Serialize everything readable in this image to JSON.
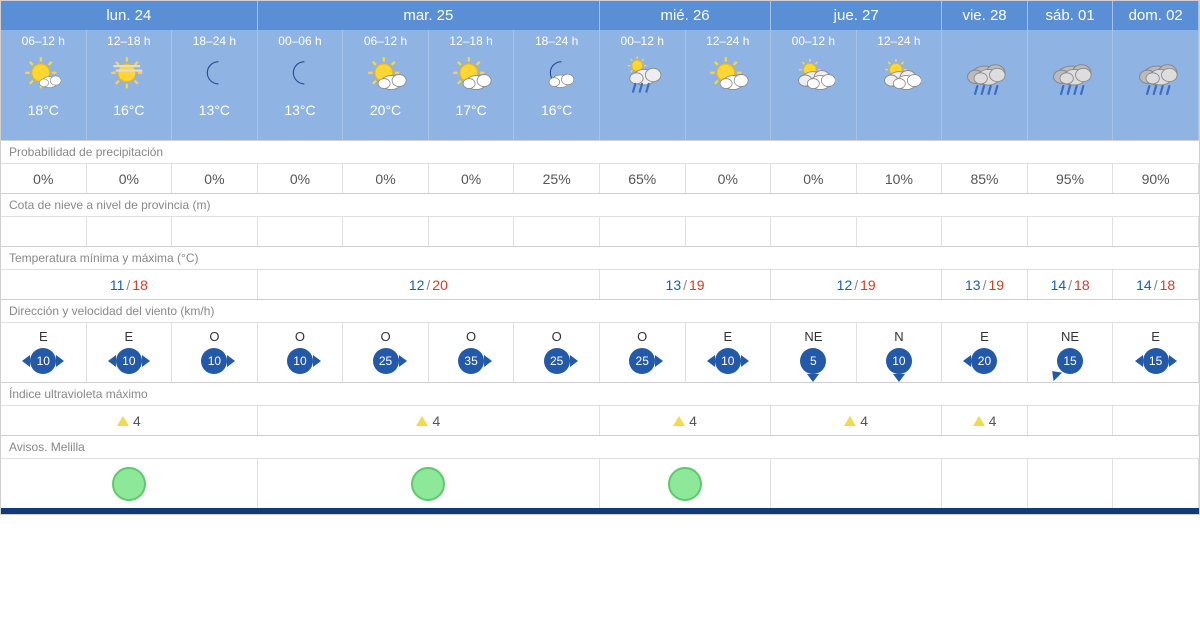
{
  "colors": {
    "header_bg": "#5a8fd6",
    "period_bg": "#8fb3e2",
    "header_border": "#a8c2e6",
    "grid_border": "#e0e0e0",
    "wind_pill": "#2259a8",
    "min_temp": "#1860b5",
    "max_temp": "#d63a2a",
    "uv_triangle": "#f2d94e",
    "aviso_fill": "#8de89a",
    "aviso_border": "#5cc96b",
    "footer_bar": "#123a78"
  },
  "section_labels": {
    "precip": "Probabilidad de precipitación",
    "snow": "Cota de nieve a nivel de provincia (m)",
    "temp": "Temperatura mínima y máxima (°C)",
    "wind": "Dirección y velocidad del viento (km/h)",
    "uv": "Índice ultravioleta máximo",
    "avisos": "Avisos. Melilla"
  },
  "days": [
    {
      "label": "lun. 24",
      "periods": [
        {
          "hours": "06–12 h",
          "icon": "sun-small-cloud",
          "temp": "18°C"
        },
        {
          "hours": "12–18 h",
          "icon": "sun-haze",
          "temp": "16°C"
        },
        {
          "hours": "18–24 h",
          "icon": "moon",
          "temp": "13°C"
        }
      ],
      "precip": [
        "0%",
        "0%",
        "0%"
      ],
      "snow": [
        "",
        "",
        ""
      ],
      "minmax": {
        "min": "11",
        "max": "18"
      },
      "wind": [
        {
          "dir": "E",
          "speed": "10",
          "arrows": [
            "left",
            "right"
          ]
        },
        {
          "dir": "E",
          "speed": "10",
          "arrows": [
            "left",
            "right"
          ]
        },
        {
          "dir": "O",
          "speed": "10",
          "arrows": [
            "right"
          ]
        }
      ],
      "uv": "4",
      "aviso": true
    },
    {
      "label": "mar. 25",
      "periods": [
        {
          "hours": "00–06 h",
          "icon": "moon",
          "temp": "13°C"
        },
        {
          "hours": "06–12 h",
          "icon": "sun-cloud",
          "temp": "20°C"
        },
        {
          "hours": "12–18 h",
          "icon": "sun-cloud",
          "temp": "17°C"
        },
        {
          "hours": "18–24 h",
          "icon": "moon-cloud",
          "temp": "16°C"
        }
      ],
      "precip": [
        "0%",
        "0%",
        "0%",
        "25%"
      ],
      "snow": [
        "",
        "",
        "",
        ""
      ],
      "minmax": {
        "min": "12",
        "max": "20"
      },
      "wind": [
        {
          "dir": "O",
          "speed": "10",
          "arrows": [
            "right"
          ]
        },
        {
          "dir": "O",
          "speed": "25",
          "arrows": [
            "right"
          ]
        },
        {
          "dir": "O",
          "speed": "35",
          "arrows": [
            "right"
          ]
        },
        {
          "dir": "O",
          "speed": "25",
          "arrows": [
            "right"
          ]
        }
      ],
      "uv": "4",
      "aviso": true
    },
    {
      "label": "mié. 26",
      "periods": [
        {
          "hours": "00–12 h",
          "icon": "cloud-rain-sun",
          "temp": ""
        },
        {
          "hours": "12–24 h",
          "icon": "sun-cloud",
          "temp": ""
        }
      ],
      "precip": [
        "65%",
        "0%"
      ],
      "snow": [
        "",
        ""
      ],
      "minmax": {
        "min": "13",
        "max": "19"
      },
      "wind": [
        {
          "dir": "O",
          "speed": "25",
          "arrows": [
            "right"
          ]
        },
        {
          "dir": "E",
          "speed": "10",
          "arrows": [
            "left",
            "right"
          ]
        }
      ],
      "uv": "4",
      "aviso": true
    },
    {
      "label": "jue. 27",
      "periods": [
        {
          "hours": "00–12 h",
          "icon": "sun-clouds",
          "temp": ""
        },
        {
          "hours": "12–24 h",
          "icon": "sun-clouds",
          "temp": ""
        }
      ],
      "precip": [
        "0%",
        "10%"
      ],
      "snow": [
        "",
        ""
      ],
      "minmax": {
        "min": "12",
        "max": "19"
      },
      "wind": [
        {
          "dir": "NE",
          "speed": "5",
          "arrows": [
            "down"
          ]
        },
        {
          "dir": "N",
          "speed": "10",
          "arrows": [
            "down"
          ]
        }
      ],
      "uv": "4",
      "aviso": false
    },
    {
      "label": "vie. 28",
      "periods": [
        {
          "hours": "",
          "icon": "rain-cloud",
          "temp": ""
        }
      ],
      "precip": [
        "85%"
      ],
      "snow": [
        ""
      ],
      "minmax": {
        "min": "13",
        "max": "19"
      },
      "wind": [
        {
          "dir": "E",
          "speed": "20",
          "arrows": [
            "left"
          ]
        }
      ],
      "uv": "4",
      "aviso": false
    },
    {
      "label": "sáb. 01",
      "periods": [
        {
          "hours": "",
          "icon": "rain-cloud",
          "temp": ""
        }
      ],
      "precip": [
        "95%"
      ],
      "snow": [
        ""
      ],
      "minmax": {
        "min": "14",
        "max": "18"
      },
      "wind": [
        {
          "dir": "NE",
          "speed": "15",
          "arrows": [
            "down-left"
          ]
        }
      ],
      "uv": "",
      "aviso": false
    },
    {
      "label": "dom. 02",
      "periods": [
        {
          "hours": "",
          "icon": "rain-cloud",
          "temp": ""
        }
      ],
      "precip": [
        "90%"
      ],
      "snow": [
        ""
      ],
      "minmax": {
        "min": "14",
        "max": "18"
      },
      "wind": [
        {
          "dir": "E",
          "speed": "15",
          "arrows": [
            "left",
            "right"
          ]
        }
      ],
      "uv": "",
      "aviso": false
    }
  ]
}
